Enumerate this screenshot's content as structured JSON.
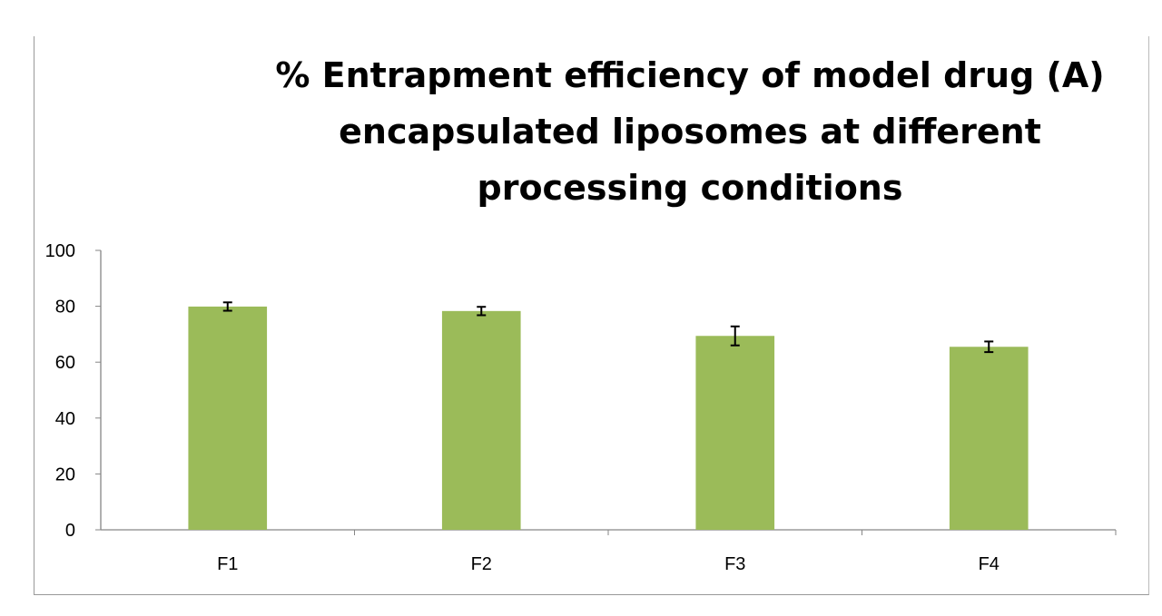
{
  "chart_data": {
    "type": "bar",
    "title": "% Entrapment efficiency of model drug (A) encapsulated liposomes at different processing conditions",
    "title_lines": [
      "% Entrapment efficiency of model drug (A)",
      "encapsulated liposomes at different",
      "processing conditions"
    ],
    "categories": [
      "F1",
      "F2",
      "F3",
      "F4"
    ],
    "values": [
      79.9,
      78.3,
      69.4,
      65.5
    ],
    "errors": [
      1.5,
      1.5,
      3.4,
      1.9
    ],
    "xlabel": "",
    "ylabel": "",
    "ylim": [
      0,
      100
    ],
    "yticks": [
      "0",
      "20",
      "40",
      "60",
      "80",
      "100"
    ],
    "grid": false,
    "bar_color": "#9bbb59"
  }
}
